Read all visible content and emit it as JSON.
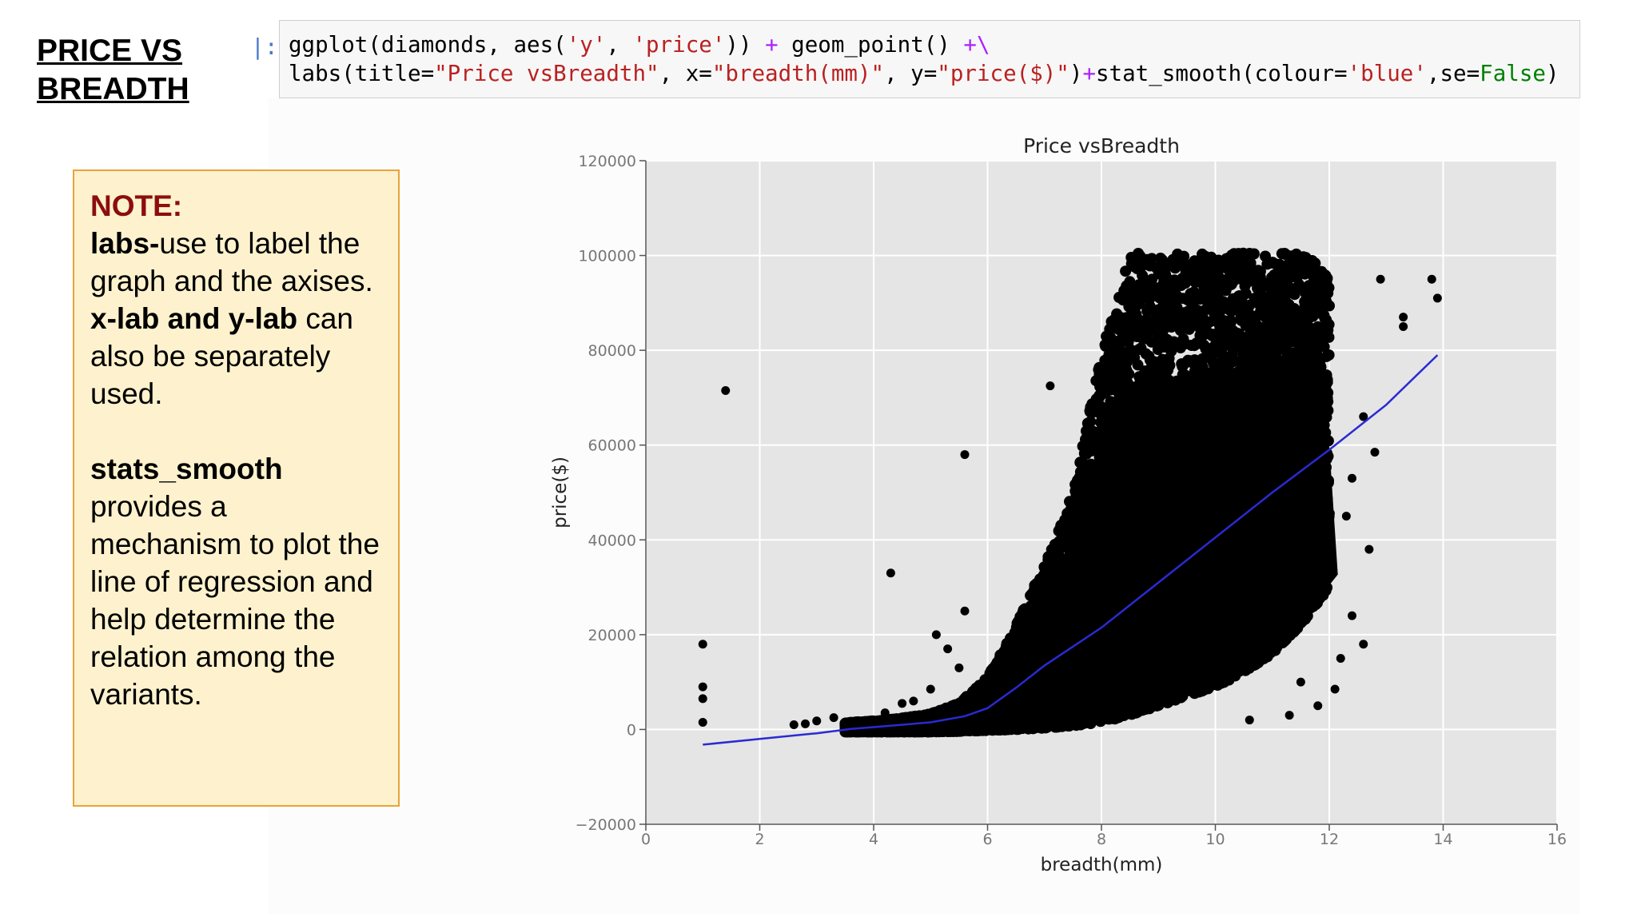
{
  "slide": {
    "title_line1": "PRICE VS",
    "title_line2": "BREADTH"
  },
  "code_cell": {
    "prompt": "|:",
    "line1": {
      "a": "ggplot(diamonds, aes(",
      "s1": "'y'",
      "b": ", ",
      "s2": "'price'",
      "c": ")) ",
      "op1": "+",
      "d": " geom_point() ",
      "op2": "+\\"
    },
    "line2": {
      "a": "labs(title=",
      "s1": "\"Price vsBreadth\"",
      "b": ", x=",
      "s2": "\"breadth(mm)\"",
      "c": ", y=",
      "s3": "\"price($)\"",
      "d": ")",
      "op1": "+",
      "e": "stat_smooth(colour=",
      "s4": "'blue'",
      "f": ",se=",
      "kw": "False",
      "g": ")"
    }
  },
  "note": {
    "heading": "NOTE:",
    "labs_term": "labs-",
    "labs_text": "use to label the graph and the axises.",
    "xy_term": "x-lab and y-lab",
    "xy_text": " can also be separately used.",
    "stats_term": "stats_smooth",
    "stats_text": "provides a mechanism to plot the line of regression and help determine the relation among the variants."
  },
  "chart_data": {
    "type": "scatter",
    "title": "Price vsBreadth",
    "xlabel": "breadth(mm)",
    "ylabel": "price($)",
    "xlim": [
      0,
      16
    ],
    "ylim": [
      -20000,
      120000
    ],
    "x_ticks": [
      0,
      2,
      4,
      6,
      8,
      10,
      12,
      14,
      16
    ],
    "y_ticks": [
      -20000,
      0,
      20000,
      40000,
      60000,
      80000,
      100000,
      120000
    ],
    "x_tick_labels": [
      "0",
      "2",
      "4",
      "6",
      "8",
      "10",
      "12",
      "14",
      "16"
    ],
    "y_tick_labels": [
      "−20000",
      "0",
      "20000",
      "40000",
      "60000",
      "80000",
      "100000",
      "120000"
    ],
    "grid": true,
    "colors": {
      "points": "#000000",
      "smooth": "#2a2ad4",
      "panel": "#e5e5e5",
      "grid": "#ffffff"
    },
    "points_density": [
      {
        "x": 3.5,
        "y_min": -500,
        "y_max": 1500
      },
      {
        "x": 4.0,
        "y_min": -500,
        "y_max": 1800
      },
      {
        "x": 4.5,
        "y_min": -500,
        "y_max": 2400
      },
      {
        "x": 5.0,
        "y_min": -500,
        "y_max": 3300
      },
      {
        "x": 5.5,
        "y_min": -400,
        "y_max": 5500
      },
      {
        "x": 6.0,
        "y_min": -200,
        "y_max": 11000
      },
      {
        "x": 6.5,
        "y_min": 0,
        "y_max": 22000
      },
      {
        "x": 7.0,
        "y_min": 300,
        "y_max": 35000
      },
      {
        "x": 7.5,
        "y_min": 800,
        "y_max": 50000
      },
      {
        "x": 8.0,
        "y_min": 1500,
        "y_max": 80000
      },
      {
        "x": 8.5,
        "y_min": 3000,
        "y_max": 100500
      },
      {
        "x": 9.0,
        "y_min": 5000,
        "y_max": 100500
      },
      {
        "x": 9.5,
        "y_min": 7000,
        "y_max": 100500
      },
      {
        "x": 10.0,
        "y_min": 9000,
        "y_max": 100500
      },
      {
        "x": 10.5,
        "y_min": 12000,
        "y_max": 100500
      },
      {
        "x": 11.0,
        "y_min": 16000,
        "y_max": 100500
      },
      {
        "x": 11.5,
        "y_min": 22000,
        "y_max": 100500
      },
      {
        "x": 12.0,
        "y_min": 30000,
        "y_max": 97000
      }
    ],
    "outliers": [
      [
        1.0,
        18000
      ],
      [
        1.0,
        9000
      ],
      [
        1.0,
        6500
      ],
      [
        1.0,
        1500
      ],
      [
        1.4,
        71500
      ],
      [
        2.6,
        1000
      ],
      [
        2.8,
        1200
      ],
      [
        3.0,
        1800
      ],
      [
        3.3,
        2500
      ],
      [
        3.6,
        1500
      ],
      [
        4.3,
        33000
      ],
      [
        4.2,
        3500
      ],
      [
        4.5,
        5500
      ],
      [
        4.7,
        6000
      ],
      [
        5.0,
        8500
      ],
      [
        5.1,
        20000
      ],
      [
        5.3,
        17000
      ],
      [
        5.5,
        13000
      ],
      [
        5.6,
        58000
      ],
      [
        5.6,
        25000
      ],
      [
        7.1,
        72500
      ],
      [
        8.0,
        2000
      ],
      [
        10.6,
        2000
      ],
      [
        11.3,
        3000
      ],
      [
        11.5,
        10000
      ],
      [
        11.8,
        5000
      ],
      [
        12.1,
        8500
      ],
      [
        12.2,
        15000
      ],
      [
        12.4,
        24000
      ],
      [
        12.6,
        18000
      ],
      [
        12.6,
        66000
      ],
      [
        12.7,
        38000
      ],
      [
        12.8,
        58500
      ],
      [
        12.9,
        95000
      ],
      [
        12.4,
        53000
      ],
      [
        12.3,
        45000
      ],
      [
        13.3,
        87000
      ],
      [
        13.3,
        85000
      ],
      [
        13.8,
        95000
      ],
      [
        13.9,
        91000
      ]
    ],
    "smooth_line": [
      [
        1.0,
        -3200
      ],
      [
        2.0,
        -2000
      ],
      [
        3.0,
        -800
      ],
      [
        3.6,
        100
      ],
      [
        4.0,
        500
      ],
      [
        5.0,
        1500
      ],
      [
        5.6,
        2800
      ],
      [
        6.0,
        4500
      ],
      [
        6.5,
        8800
      ],
      [
        7.0,
        13500
      ],
      [
        8.0,
        21500
      ],
      [
        9.0,
        31000
      ],
      [
        10.0,
        40500
      ],
      [
        11.0,
        50000
      ],
      [
        12.0,
        59000
      ],
      [
        13.0,
        68500
      ],
      [
        13.9,
        79000
      ]
    ]
  }
}
